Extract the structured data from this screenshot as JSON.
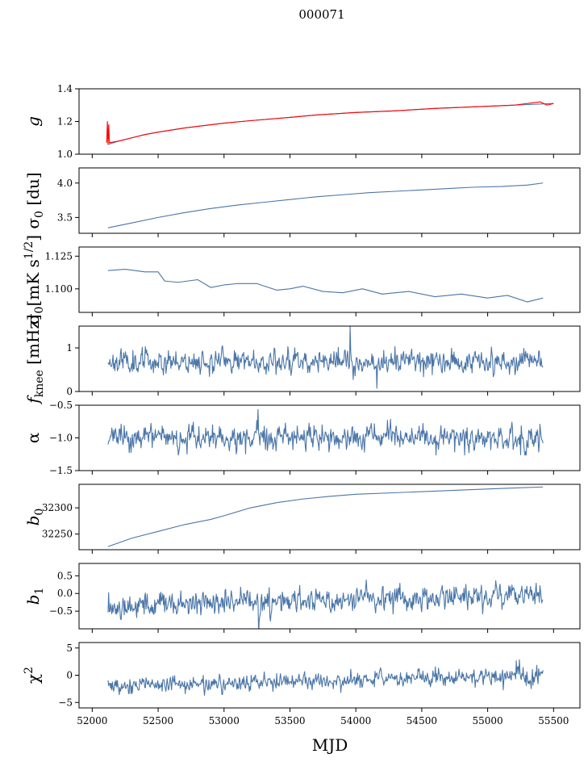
{
  "figure": {
    "suptitle": "000071",
    "xlabel": "MJD"
  },
  "colors": {
    "series": "#4a76a8",
    "overlay": "#ff0000",
    "axis": "#000000"
  },
  "chart_data": [
    {
      "type": "line",
      "ylabel": "g",
      "ylabel_math": {
        "main": "g"
      },
      "ylim": [
        1.0,
        1.4
      ],
      "yticks": [
        1.0,
        1.2,
        1.4
      ],
      "ytick_labels": [
        "1.0",
        "1.2",
        "1.4"
      ],
      "xlim": [
        51900,
        55700
      ],
      "series": [
        {
          "name": "",
          "color": "#4a76a8",
          "x": [
            52120,
            52200,
            52300,
            52400,
            52500,
            52700,
            52900,
            53000,
            53200,
            53500,
            53700,
            54000,
            54300,
            54600,
            54900,
            55200,
            55500
          ],
          "y": [
            1.06,
            1.08,
            1.1,
            1.12,
            1.135,
            1.16,
            1.18,
            1.19,
            1.205,
            1.225,
            1.24,
            1.255,
            1.265,
            1.28,
            1.29,
            1.3,
            1.31
          ]
        },
        {
          "name": "",
          "color": "#ff0000",
          "x": [
            52110,
            52115,
            52120,
            52125,
            52130,
            52200,
            52300,
            52400,
            52500,
            52700,
            52900,
            53000,
            53200,
            53500,
            53700,
            54000,
            54300,
            54600,
            54900,
            55200,
            55400,
            55450,
            55500
          ],
          "y": [
            1.07,
            1.2,
            1.06,
            1.18,
            1.07,
            1.08,
            1.1,
            1.12,
            1.135,
            1.16,
            1.18,
            1.19,
            1.205,
            1.225,
            1.24,
            1.255,
            1.265,
            1.28,
            1.29,
            1.3,
            1.32,
            1.3,
            1.31
          ]
        }
      ]
    },
    {
      "type": "line",
      "ylabel": "σ0 [du]",
      "ylabel_math": {
        "main": "σ",
        "sub": "0",
        "rest": " [du]"
      },
      "ylim": [
        3.27,
        4.22
      ],
      "yticks": [
        3.5,
        4.0
      ],
      "ytick_labels": [
        "3.5",
        "4.0"
      ],
      "xlim": [
        51900,
        55700
      ],
      "series": [
        {
          "name": "",
          "color": "#4a76a8",
          "x": [
            52120,
            52300,
            52500,
            52700,
            52900,
            53100,
            53300,
            53500,
            53700,
            53900,
            54100,
            54300,
            54500,
            54700,
            54900,
            55100,
            55300,
            55420
          ],
          "y": [
            3.35,
            3.42,
            3.5,
            3.57,
            3.63,
            3.68,
            3.72,
            3.76,
            3.8,
            3.83,
            3.86,
            3.88,
            3.9,
            3.92,
            3.94,
            3.95,
            3.97,
            4.0
          ]
        }
      ]
    },
    {
      "type": "line",
      "ylabel": "σ0[mK s1/2]",
      "ylabel_math": {
        "main": "σ",
        "sub": "0",
        "rest": "[mK s",
        "sup": "1/2",
        "end": "]"
      },
      "ylim": [
        1.082,
        1.132
      ],
      "yticks": [
        1.1,
        1.125
      ],
      "ytick_labels": [
        "1.100",
        "1.125"
      ],
      "xlim": [
        51900,
        55700
      ],
      "series": [
        {
          "name": "",
          "color": "#4a76a8",
          "x": [
            52120,
            52250,
            52400,
            52500,
            52550,
            52650,
            52800,
            52900,
            53000,
            53100,
            53250,
            53400,
            53500,
            53600,
            53750,
            53900,
            54050,
            54200,
            54400,
            54600,
            54800,
            55000,
            55150,
            55300,
            55420
          ],
          "y": [
            1.114,
            1.115,
            1.113,
            1.113,
            1.106,
            1.105,
            1.107,
            1.101,
            1.103,
            1.104,
            1.104,
            1.099,
            1.1,
            1.102,
            1.098,
            1.097,
            1.1,
            1.096,
            1.098,
            1.094,
            1.096,
            1.093,
            1.095,
            1.09,
            1.093
          ]
        }
      ]
    },
    {
      "type": "line",
      "ylabel": "fknee [mHz]",
      "ylabel_math": {
        "main": "f",
        "sub": "knee",
        "rest": " [mHz]"
      },
      "ylim": [
        0,
        1.5
      ],
      "yticks": [
        0,
        1
      ],
      "ytick_labels": [
        "0",
        "1"
      ],
      "xlim": [
        51900,
        55700
      ],
      "noise": {
        "x_start": 52120,
        "x_end": 55420,
        "n": 700,
        "mean": 0.7,
        "amp": 0.13,
        "seed": 11
      },
      "series": [
        {
          "name": "",
          "color": "#4a76a8"
        }
      ]
    },
    {
      "type": "line",
      "ylabel": "α",
      "ylabel_math": {
        "main": "α"
      },
      "ylim": [
        -1.5,
        -0.5
      ],
      "yticks": [
        -1.5,
        -1.0,
        -0.5
      ],
      "ytick_labels": [
        "−1.5",
        "−1.0",
        "−0.5"
      ],
      "xlim": [
        51900,
        55700
      ],
      "noise": {
        "x_start": 52120,
        "x_end": 55420,
        "n": 700,
        "mean": -1.0,
        "amp": 0.09,
        "seed": 23
      },
      "series": [
        {
          "name": "",
          "color": "#4a76a8"
        }
      ]
    },
    {
      "type": "line",
      "ylabel": "b0",
      "ylabel_math": {
        "main": "b",
        "sub": "0"
      },
      "ylim": [
        32220,
        32345
      ],
      "yticks": [
        32250,
        32300
      ],
      "ytick_labels": [
        "32250",
        "32300"
      ],
      "xlim": [
        51900,
        55700
      ],
      "series": [
        {
          "name": "",
          "color": "#4a76a8",
          "x": [
            52120,
            52300,
            52500,
            52700,
            52900,
            53000,
            53200,
            53400,
            53600,
            53800,
            54000,
            54300,
            54600,
            54900,
            55200,
            55420
          ],
          "y": [
            32226,
            32242,
            32255,
            32268,
            32278,
            32285,
            32300,
            32310,
            32317,
            32322,
            32326,
            32329,
            32332,
            32335,
            32338,
            32340
          ]
        }
      ]
    },
    {
      "type": "line",
      "ylabel": "b1",
      "ylabel_math": {
        "main": "b",
        "sub": "1"
      },
      "ylim": [
        -1.0,
        0.85
      ],
      "yticks": [
        -0.5,
        0.0,
        0.5
      ],
      "ytick_labels": [
        "−0.5",
        "0.0",
        "0.5"
      ],
      "xlim": [
        51900,
        55700
      ],
      "noise": {
        "x_start": 52120,
        "x_end": 55420,
        "n": 700,
        "mean_start": -0.35,
        "mean_end": 0.0,
        "amp": 0.17,
        "seed": 37
      },
      "series": [
        {
          "name": "",
          "color": "#4a76a8"
        }
      ]
    },
    {
      "type": "line",
      "ylabel": "χ2",
      "ylabel_math": {
        "main": "χ",
        "sup": "2"
      },
      "ylim": [
        -6,
        6
      ],
      "yticks": [
        -5,
        0,
        5
      ],
      "ytick_labels": [
        "−5",
        "0",
        "5"
      ],
      "xlim": [
        51900,
        55700
      ],
      "noise": {
        "x_start": 52120,
        "x_end": 55420,
        "n": 700,
        "mean_start": -2.0,
        "mean_end": 0.0,
        "amp": 0.75,
        "seed": 53
      },
      "series": [
        {
          "name": "",
          "color": "#4a76a8"
        }
      ]
    }
  ],
  "xaxis": {
    "xticks": [
      52000,
      52500,
      53000,
      53500,
      54000,
      54500,
      55000,
      55500
    ],
    "xtick_labels": [
      "52000",
      "52500",
      "53000",
      "53500",
      "54000",
      "54500",
      "55000",
      "55500"
    ]
  }
}
